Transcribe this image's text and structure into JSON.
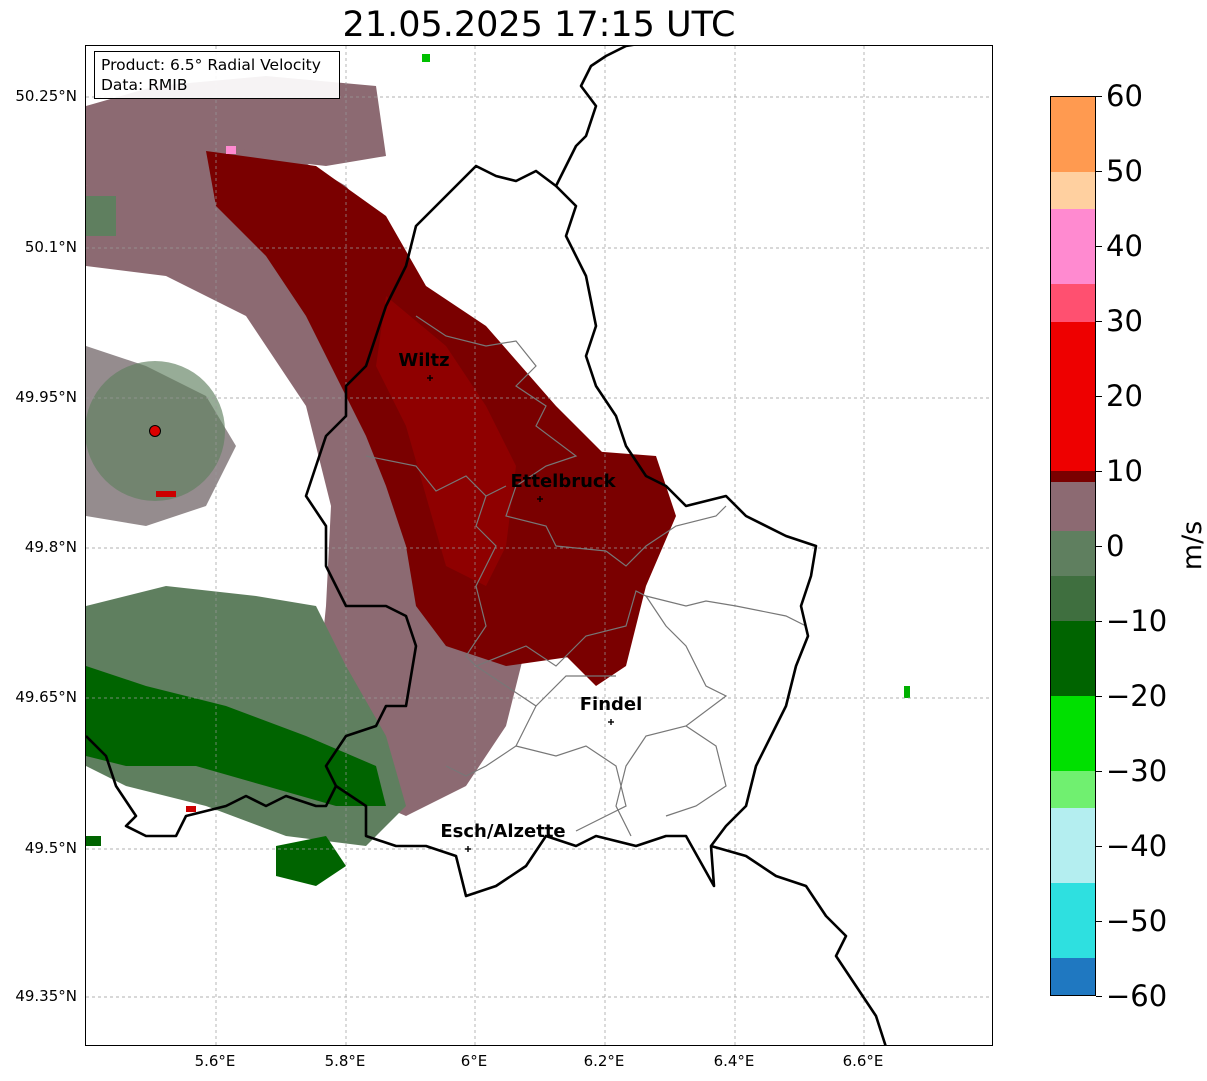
{
  "title": "21.05.2025 17:15 UTC",
  "info": {
    "product": "Product: 6.5° Radial Velocity",
    "data": "Data: RMIB"
  },
  "axes": {
    "lat_ticks": [
      "50.25°N",
      "50.1°N",
      "49.95°N",
      "49.8°N",
      "49.65°N",
      "49.5°N",
      "49.35°N"
    ],
    "lon_ticks": [
      "5.6°E",
      "5.8°E",
      "6°E",
      "6.2°E",
      "6.4°E",
      "6.6°E"
    ],
    "lon_range": [
      5.4,
      6.8
    ],
    "lat_range": [
      49.3,
      50.3
    ],
    "grid": true
  },
  "cities": [
    {
      "name": "Wiltz",
      "lon": 5.93,
      "lat": 49.966
    },
    {
      "name": "Ettelbruck",
      "lon": 6.104,
      "lat": 49.848
    },
    {
      "name": "Findel",
      "lon": 6.212,
      "lat": 49.627
    },
    {
      "name": "Esch/Alzette",
      "lon": 5.99,
      "lat": 49.497
    }
  ],
  "radar_site": {
    "lon": 5.505,
    "lat": 49.914,
    "color": "#dd0000"
  },
  "colorbar": {
    "unit": "m/s",
    "min": -60,
    "max": 60,
    "tick_labels": [
      "60",
      "50",
      "40",
      "30",
      "20",
      "10",
      "0",
      "−10",
      "−20",
      "−30",
      "−40",
      "−50",
      "−60"
    ],
    "colors": {
      "strong_inbound": "#1f78c1",
      "cyan": "#2ee0e0",
      "light_cyan": "#b4eef0",
      "light_green": "#70f070",
      "bright_green": "#00e000",
      "dark_green": "#006400",
      "grey_green": "#5f7f5f",
      "grey_pink": "#8c6a72",
      "dark_red": "#7a0000",
      "red": "#ee0000",
      "pink": "#ff8ad0",
      "peach": "#ffd0a0",
      "orange": "#ff9a50"
    }
  }
}
